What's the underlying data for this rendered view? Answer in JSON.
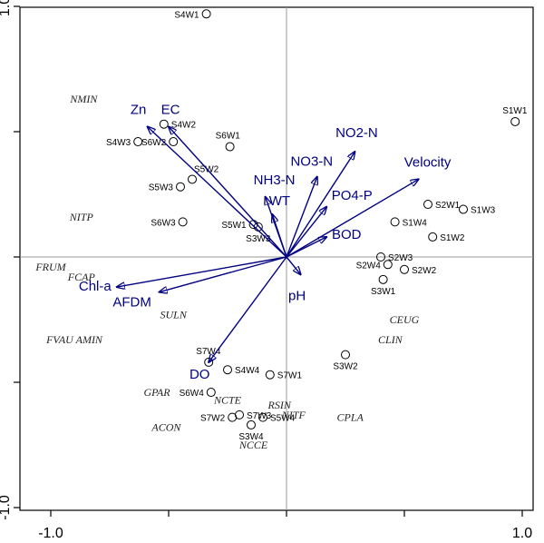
{
  "chart_data": {
    "type": "scatter",
    "title": "",
    "xlabel": "",
    "ylabel": "",
    "xlim": [
      -1.05,
      1.05
    ],
    "ylim": [
      -1.05,
      1.05
    ],
    "x_ticks": [
      {
        "value": -1.0,
        "label": "-1.0"
      },
      {
        "value": 1.0,
        "label": "1.0"
      }
    ],
    "y_ticks": [
      {
        "value": 1.0,
        "label": "1.0"
      },
      {
        "value": -1.0,
        "label": "-1.0"
      }
    ],
    "minor_ticks": [
      -0.5,
      0.5
    ],
    "origin_lines": true,
    "colors": {
      "arrows": "#000080",
      "points": "#000000",
      "species": "#222222"
    },
    "sites": [
      {
        "label": "S4W1",
        "x": -0.34,
        "y": 0.97
      },
      {
        "label": "S1W1",
        "x": 0.97,
        "y": 0.54
      },
      {
        "label": "S4W2",
        "x": -0.52,
        "y": 0.53
      },
      {
        "label": "S4W3",
        "x": -0.63,
        "y": 0.46
      },
      {
        "label": "S6W2",
        "x": -0.48,
        "y": 0.46
      },
      {
        "label": "S6W1",
        "x": -0.24,
        "y": 0.44
      },
      {
        "label": "S5W2",
        "x": -0.4,
        "y": 0.31
      },
      {
        "label": "S5W3",
        "x": -0.45,
        "y": 0.28
      },
      {
        "label": "S6W3",
        "x": -0.44,
        "y": 0.14
      },
      {
        "label": "S5W1",
        "x": -0.14,
        "y": 0.13
      },
      {
        "label": "S3W3",
        "x": -0.12,
        "y": 0.12
      },
      {
        "label": "S2W1",
        "x": 0.6,
        "y": 0.21
      },
      {
        "label": "S1W3",
        "x": 0.75,
        "y": 0.19
      },
      {
        "label": "S1W4",
        "x": 0.46,
        "y": 0.14
      },
      {
        "label": "S1W2",
        "x": 0.62,
        "y": 0.08
      },
      {
        "label": "S2W3",
        "x": 0.4,
        "y": 0.0
      },
      {
        "label": "S2W4",
        "x": 0.43,
        "y": -0.03
      },
      {
        "label": "S2W2",
        "x": 0.5,
        "y": -0.05
      },
      {
        "label": "S3W1",
        "x": 0.41,
        "y": -0.09
      },
      {
        "label": "S3W2",
        "x": 0.25,
        "y": -0.39
      },
      {
        "label": "S7W4",
        "x": -0.33,
        "y": -0.42
      },
      {
        "label": "S4W4",
        "x": -0.25,
        "y": -0.45
      },
      {
        "label": "S7W1",
        "x": -0.07,
        "y": -0.47
      },
      {
        "label": "S6W4",
        "x": -0.32,
        "y": -0.54
      },
      {
        "label": "S7W3",
        "x": -0.2,
        "y": -0.63
      },
      {
        "label": "S7W2",
        "x": -0.23,
        "y": -0.64
      },
      {
        "label": "S5W4",
        "x": -0.1,
        "y": -0.64
      },
      {
        "label": "S3W4",
        "x": -0.15,
        "y": -0.67
      }
    ],
    "species": [
      {
        "label": "NMIN",
        "x": -0.86,
        "y": 0.63
      },
      {
        "label": "NITP",
        "x": -0.87,
        "y": 0.16
      },
      {
        "label": "FRUM",
        "x": -1.0,
        "y": -0.04
      },
      {
        "label": "FCAP",
        "x": -0.87,
        "y": -0.08
      },
      {
        "label": "SULN",
        "x": -0.48,
        "y": -0.23
      },
      {
        "label": "FVAU AMIN",
        "x": -0.9,
        "y": -0.33
      },
      {
        "label": "CEUG",
        "x": 0.5,
        "y": -0.25
      },
      {
        "label": "CLIN",
        "x": 0.44,
        "y": -0.33
      },
      {
        "label": "GPAR",
        "x": -0.55,
        "y": -0.54
      },
      {
        "label": "NCTE",
        "x": -0.25,
        "y": -0.57
      },
      {
        "label": "RSIN",
        "x": -0.03,
        "y": -0.59
      },
      {
        "label": "NITF",
        "x": 0.03,
        "y": -0.63
      },
      {
        "label": "CPLA",
        "x": 0.27,
        "y": -0.64
      },
      {
        "label": "ACON",
        "x": -0.51,
        "y": -0.68
      },
      {
        "label": "NCCE",
        "x": -0.14,
        "y": -0.75
      }
    ],
    "env_vectors": [
      {
        "label": "Zn",
        "x": -0.59,
        "y": 0.52
      },
      {
        "label": "EC",
        "x": -0.5,
        "y": 0.52
      },
      {
        "label": "NO2-N",
        "x": 0.29,
        "y": 0.42
      },
      {
        "label": "NO3-N",
        "x": 0.13,
        "y": 0.32
      },
      {
        "label": "Velocity",
        "x": 0.56,
        "y": 0.31
      },
      {
        "label": "NH3-N",
        "x": -0.09,
        "y": 0.24
      },
      {
        "label": "WT",
        "x": -0.06,
        "y": 0.17
      },
      {
        "label": "PO4-P",
        "x": 0.17,
        "y": 0.2
      },
      {
        "label": "BOD",
        "x": 0.17,
        "y": 0.08
      },
      {
        "label": "pH",
        "x": 0.06,
        "y": -0.07
      },
      {
        "label": "Chl-a",
        "x": -0.72,
        "y": -0.12
      },
      {
        "label": "AFDM",
        "x": -0.54,
        "y": -0.14
      },
      {
        "label": "DO",
        "x": -0.33,
        "y": -0.42
      }
    ]
  }
}
